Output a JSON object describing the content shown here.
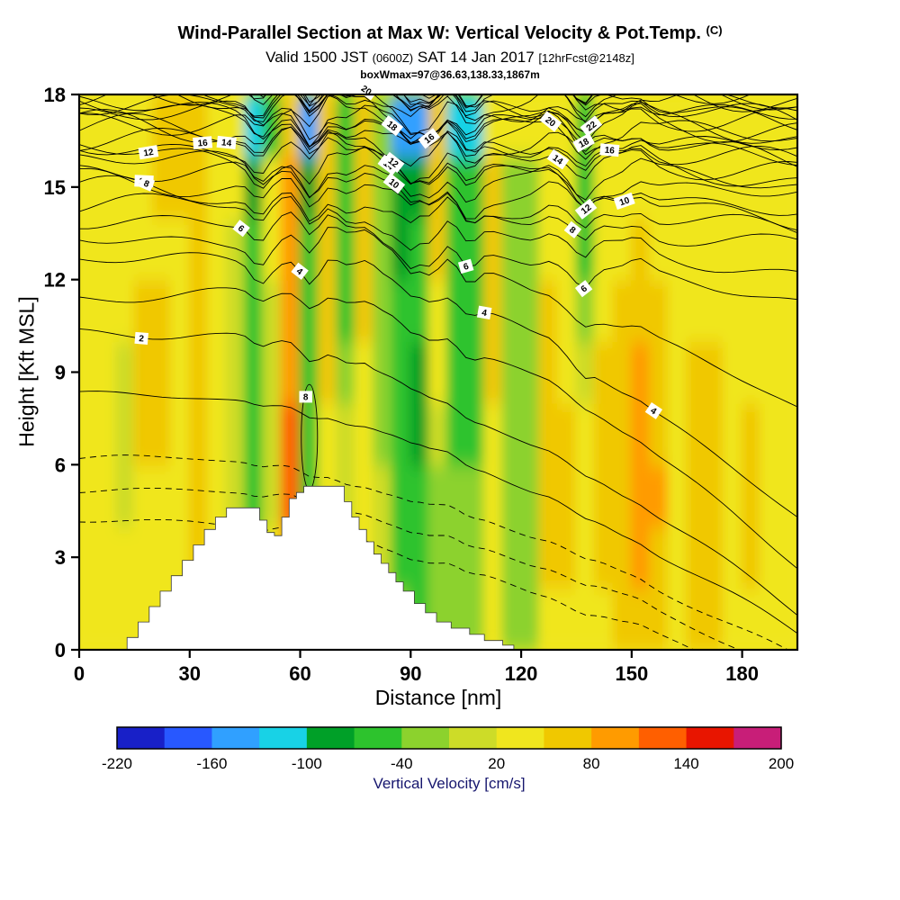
{
  "header": {
    "title_main": "Wind-Parallel Section at Max W: Vertical Velocity & Pot.Temp.",
    "title_unit": "(C)",
    "subtitle_prefix": "Valid 1500 JST",
    "subtitle_small1": "(0600Z)",
    "subtitle_mid": "SAT 14 Jan 2017",
    "subtitle_small2": "[12hrFcst@2148z]",
    "annotation": "boxWmax=97@36.63,138.33,1867m"
  },
  "chart_data": {
    "type": "heatmap",
    "overlay": "contour-lines",
    "title": "Wind-Parallel Section at Max W: Vertical Velocity & Pot.Temp. (C)",
    "subtitle": "Valid 1500 JST (0600Z) SAT 14 Jan 2017 [12hrFcst@2148z]",
    "annotation": "boxWmax=97@36.63,138.33,1867m",
    "xlabel": "Distance [nm]",
    "ylabel": "Height [Kft MSL]",
    "xlim": [
      0,
      195
    ],
    "ylim": [
      0,
      18
    ],
    "xticks": [
      0,
      30,
      60,
      90,
      120,
      150,
      180
    ],
    "yticks": [
      0,
      3,
      6,
      9,
      12,
      15,
      18
    ],
    "colorbar": {
      "label": "Vertical Velocity [cm/s]",
      "min": -220,
      "max": 200,
      "step": 30,
      "ticks": [
        -220,
        -160,
        -100,
        -40,
        20,
        80,
        140,
        200
      ],
      "colors": [
        "#1820c8",
        "#2858ff",
        "#30a0ff",
        "#18d2e6",
        "#00a028",
        "#2dc32d",
        "#8cd22d",
        "#cddc28",
        "#f0e61e",
        "#f0c800",
        "#ff9b00",
        "#ff5f00",
        "#e81500",
        "#c81e78"
      ]
    },
    "contours": {
      "variable": "Potential Temperature (C)",
      "interval": 1,
      "labeled_levels": [
        2,
        4,
        6,
        8,
        10,
        12,
        14,
        16,
        18,
        20,
        22
      ],
      "anchors": [
        [
          -2,
          4.2,
          -1.5
        ],
        [
          0,
          6.2,
          -0.2
        ],
        [
          2,
          10.3,
          1.2
        ],
        [
          4,
          12.6,
          4.3
        ],
        [
          6,
          14.0,
          11.3
        ],
        [
          8,
          14.95,
          13.1
        ],
        [
          10,
          15.65,
          14.0
        ],
        [
          12,
          16.2,
          14.7
        ],
        [
          14,
          16.7,
          15.25
        ],
        [
          16,
          17.1,
          15.75
        ],
        [
          18,
          17.45,
          16.15
        ],
        [
          20,
          17.75,
          16.5
        ],
        [
          22,
          18.02,
          16.85
        ],
        [
          24,
          18.3,
          17.15
        ],
        [
          26,
          18.6,
          17.45
        ],
        [
          28,
          18.9,
          17.72
        ],
        [
          30,
          19.2,
          18.0
        ]
      ],
      "labels": [
        {
          "v": 2,
          "x": 16.9
        },
        {
          "v": 10,
          "x": 17.6
        },
        {
          "v": 8,
          "x": 18.3
        },
        {
          "v": 12,
          "x": 18.8
        },
        {
          "v": 16,
          "x": 33.5
        },
        {
          "v": 14,
          "x": 40
        },
        {
          "v": 6,
          "x": 44
        },
        {
          "v": 4,
          "x": 59.9
        },
        {
          "v": 20,
          "x": 78
        },
        {
          "v": 14,
          "x": 84
        },
        {
          "v": 18,
          "x": 85
        },
        {
          "v": 12,
          "x": 85.3
        },
        {
          "v": 10,
          "x": 85.5
        },
        {
          "v": 16,
          "x": 95
        },
        {
          "v": 6,
          "x": 105
        },
        {
          "v": 4,
          "x": 110
        },
        {
          "v": 20,
          "x": 128
        },
        {
          "v": 14,
          "x": 130
        },
        {
          "v": 8,
          "x": 134
        },
        {
          "v": 6,
          "x": 137
        },
        {
          "v": 18,
          "x": 137
        },
        {
          "v": 12,
          "x": 137.6
        },
        {
          "v": 22,
          "x": 139
        },
        {
          "v": 16,
          "x": 144
        },
        {
          "v": 10,
          "x": 148
        },
        {
          "v": 4,
          "x": 156
        },
        {
          "v": 8,
          "x": 61.5,
          "z": 8.2
        }
      ],
      "closed": [
        {
          "v": 8,
          "x": 62.5,
          "z": 6.9,
          "rx": 2.2,
          "rz": 1.7
        }
      ]
    },
    "field": {
      "units": "cm/s",
      "x_step": 5,
      "z_step": 2,
      "x_centers": [
        2.5,
        7.5,
        12.5,
        17.5,
        22.5,
        27.5,
        32.5,
        37.5,
        42.5,
        47.5,
        52.5,
        57.5,
        62.5,
        67.5,
        72.5,
        77.5,
        82.5,
        87.5,
        92.5,
        97.5,
        102.5,
        107.5,
        112.5,
        117.5,
        122.5,
        127.5,
        132.5,
        137.5,
        142.5,
        147.5,
        152.5,
        157.5,
        162.5,
        167.5,
        172.5,
        177.5,
        182.5,
        187.5,
        192.5
      ],
      "z_centers": [
        1,
        3,
        5,
        7,
        9,
        11,
        13,
        15,
        17
      ],
      "values_by_column": [
        [
          25,
          30,
          30,
          30,
          30,
          30,
          30,
          30,
          30
        ],
        [
          25,
          30,
          30,
          30,
          30,
          30,
          30,
          30,
          30
        ],
        [
          30,
          30,
          15,
          15,
          15,
          30,
          30,
          30,
          35
        ],
        [
          30,
          35,
          40,
          60,
          60,
          55,
          40,
          45,
          45
        ],
        [
          35,
          40,
          45,
          65,
          65,
          60,
          45,
          50,
          50
        ],
        [
          35,
          40,
          40,
          45,
          45,
          40,
          40,
          55,
          55
        ],
        [
          40,
          55,
          70,
          70,
          65,
          60,
          55,
          55,
          50
        ],
        [
          40,
          45,
          40,
          35,
          30,
          30,
          35,
          40,
          40
        ],
        [
          30,
          25,
          15,
          10,
          10,
          10,
          15,
          20,
          25
        ],
        [
          -40,
          -45,
          -55,
          -60,
          -60,
          -55,
          -50,
          -80,
          -130
        ],
        [
          20,
          30,
          10,
          5,
          10,
          15,
          20,
          25,
          -60
        ],
        [
          40,
          90,
          130,
          120,
          95,
          85,
          85,
          80,
          75
        ],
        [
          -30,
          -40,
          -55,
          -70,
          -70,
          -70,
          -65,
          -75,
          -140
        ],
        [
          20,
          25,
          30,
          40,
          70,
          75,
          75,
          75,
          70
        ],
        [
          10,
          10,
          5,
          0,
          -20,
          -50,
          -60,
          -60,
          -70
        ],
        [
          20,
          25,
          30,
          35,
          45,
          50,
          60,
          65,
          60
        ],
        [
          10,
          5,
          -10,
          -25,
          -30,
          -30,
          -30,
          -35,
          -40
        ],
        [
          -40,
          -50,
          -60,
          -65,
          -65,
          -70,
          -75,
          -90,
          -145
        ],
        [
          -45,
          -55,
          -65,
          -75,
          -75,
          -70,
          -65,
          -85,
          -150
        ],
        [
          -15,
          -20,
          -20,
          0,
          20,
          45,
          65,
          70,
          60
        ],
        [
          -20,
          -30,
          -40,
          -50,
          -55,
          -55,
          -50,
          -55,
          -120
        ],
        [
          -25,
          -30,
          -40,
          -55,
          -60,
          -55,
          -50,
          -60,
          -130
        ],
        [
          30,
          35,
          40,
          45,
          50,
          55,
          55,
          50,
          45
        ],
        [
          -20,
          -30,
          -35,
          -35,
          -35,
          -35,
          -30,
          -20,
          25
        ],
        [
          -25,
          -35,
          -40,
          -40,
          -40,
          -35,
          -30,
          -20,
          20
        ],
        [
          40,
          50,
          55,
          55,
          50,
          50,
          45,
          40,
          35
        ],
        [
          45,
          50,
          55,
          50,
          45,
          40,
          35,
          30,
          25
        ],
        [
          30,
          30,
          25,
          20,
          0,
          -40,
          -50,
          -55,
          -50
        ],
        [
          45,
          50,
          55,
          55,
          50,
          45,
          40,
          35,
          30
        ],
        [
          50,
          60,
          65,
          60,
          55,
          50,
          45,
          40,
          35
        ],
        [
          70,
          90,
          105,
          90,
          80,
          60,
          50,
          45,
          40
        ],
        [
          65,
          75,
          80,
          70,
          60,
          50,
          45,
          40,
          35
        ],
        [
          40,
          45,
          45,
          40,
          40,
          35,
          35,
          30,
          30
        ],
        [
          55,
          65,
          70,
          65,
          55,
          45,
          40,
          35,
          30
        ],
        [
          50,
          60,
          65,
          60,
          50,
          45,
          40,
          35,
          30
        ],
        [
          35,
          40,
          40,
          40,
          35,
          35,
          30,
          30,
          30
        ],
        [
          40,
          50,
          55,
          50,
          45,
          40,
          35,
          30,
          30
        ],
        [
          30,
          35,
          35,
          35,
          30,
          30,
          30,
          30,
          30
        ],
        [
          25,
          25,
          30,
          30,
          30,
          30,
          30,
          30,
          30
        ]
      ]
    },
    "terrain": {
      "description": "white stepped terrain silhouette, two peaks",
      "steps": [
        [
          13,
          0.4
        ],
        [
          16,
          0.9
        ],
        [
          19,
          1.4
        ],
        [
          22,
          1.9
        ],
        [
          25,
          2.4
        ],
        [
          28,
          2.9
        ],
        [
          31,
          3.4
        ],
        [
          34,
          3.9
        ],
        [
          37,
          4.3
        ],
        [
          40,
          4.6
        ],
        [
          47,
          4.6
        ],
        [
          49,
          4.2
        ],
        [
          51,
          3.8
        ],
        [
          53,
          3.7
        ],
        [
          55,
          4.3
        ],
        [
          57,
          4.9
        ],
        [
          59,
          5.1
        ],
        [
          61,
          5.3
        ],
        [
          70,
          5.3
        ],
        [
          72,
          4.8
        ],
        [
          74,
          4.3
        ],
        [
          76,
          3.9
        ],
        [
          78,
          3.5
        ],
        [
          80,
          3.1
        ],
        [
          82,
          2.8
        ],
        [
          84,
          2.5
        ],
        [
          86,
          2.2
        ],
        [
          88,
          1.9
        ],
        [
          91,
          1.5
        ],
        [
          94,
          1.2
        ],
        [
          97,
          0.9
        ],
        [
          101,
          0.7
        ],
        [
          106,
          0.5
        ],
        [
          110,
          0.3
        ],
        [
          115,
          0.15
        ]
      ],
      "end_x": 118
    }
  }
}
